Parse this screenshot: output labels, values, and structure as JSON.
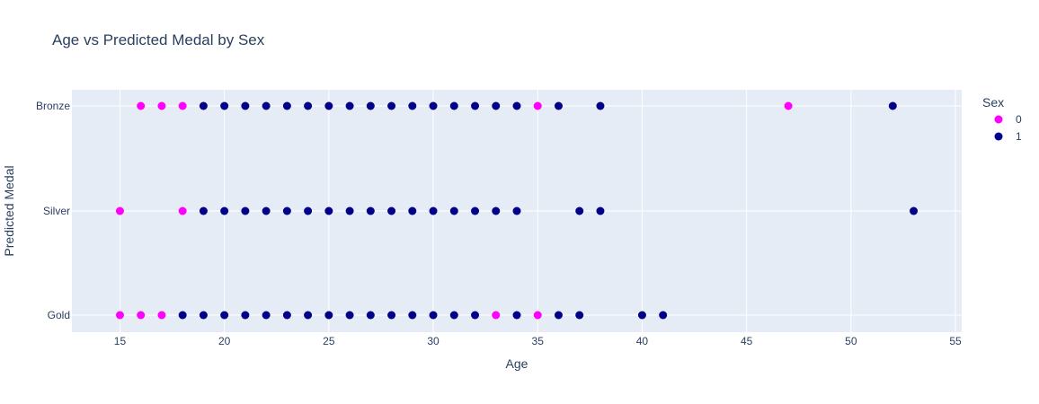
{
  "chart_data": {
    "type": "scatter",
    "title": "Age vs Predicted Medal by Sex",
    "xlabel": "Age",
    "ylabel": "Predicted Medal",
    "xlim": [
      12.7,
      55.3
    ],
    "x_ticks": [
      15,
      20,
      25,
      30,
      35,
      40,
      45,
      50,
      55
    ],
    "categories": [
      "Gold",
      "Silver",
      "Bronze"
    ],
    "grid": true,
    "legend": {
      "title": "Sex",
      "placement": "top-right"
    },
    "series": [
      {
        "name": "0",
        "color": "#ff00ff",
        "points": [
          {
            "x": 15,
            "y": "Silver"
          },
          {
            "x": 18,
            "y": "Silver"
          },
          {
            "x": 15,
            "y": "Gold"
          },
          {
            "x": 16,
            "y": "Gold"
          },
          {
            "x": 17,
            "y": "Gold"
          },
          {
            "x": 33,
            "y": "Gold"
          },
          {
            "x": 35,
            "y": "Gold"
          },
          {
            "x": 16,
            "y": "Bronze"
          },
          {
            "x": 17,
            "y": "Bronze"
          },
          {
            "x": 18,
            "y": "Bronze"
          },
          {
            "x": 35,
            "y": "Bronze"
          },
          {
            "x": 47,
            "y": "Bronze"
          }
        ]
      },
      {
        "name": "1",
        "color": "#00008b",
        "points": [
          {
            "x": 18,
            "y": "Gold"
          },
          {
            "x": 19,
            "y": "Gold"
          },
          {
            "x": 20,
            "y": "Gold"
          },
          {
            "x": 21,
            "y": "Gold"
          },
          {
            "x": 22,
            "y": "Gold"
          },
          {
            "x": 23,
            "y": "Gold"
          },
          {
            "x": 24,
            "y": "Gold"
          },
          {
            "x": 25,
            "y": "Gold"
          },
          {
            "x": 26,
            "y": "Gold"
          },
          {
            "x": 27,
            "y": "Gold"
          },
          {
            "x": 28,
            "y": "Gold"
          },
          {
            "x": 29,
            "y": "Gold"
          },
          {
            "x": 30,
            "y": "Gold"
          },
          {
            "x": 31,
            "y": "Gold"
          },
          {
            "x": 32,
            "y": "Gold"
          },
          {
            "x": 34,
            "y": "Gold"
          },
          {
            "x": 36,
            "y": "Gold"
          },
          {
            "x": 37,
            "y": "Gold"
          },
          {
            "x": 40,
            "y": "Gold"
          },
          {
            "x": 41,
            "y": "Gold"
          },
          {
            "x": 19,
            "y": "Silver"
          },
          {
            "x": 20,
            "y": "Silver"
          },
          {
            "x": 21,
            "y": "Silver"
          },
          {
            "x": 22,
            "y": "Silver"
          },
          {
            "x": 23,
            "y": "Silver"
          },
          {
            "x": 24,
            "y": "Silver"
          },
          {
            "x": 25,
            "y": "Silver"
          },
          {
            "x": 26,
            "y": "Silver"
          },
          {
            "x": 27,
            "y": "Silver"
          },
          {
            "x": 28,
            "y": "Silver"
          },
          {
            "x": 29,
            "y": "Silver"
          },
          {
            "x": 30,
            "y": "Silver"
          },
          {
            "x": 31,
            "y": "Silver"
          },
          {
            "x": 32,
            "y": "Silver"
          },
          {
            "x": 33,
            "y": "Silver"
          },
          {
            "x": 34,
            "y": "Silver"
          },
          {
            "x": 37,
            "y": "Silver"
          },
          {
            "x": 38,
            "y": "Silver"
          },
          {
            "x": 53,
            "y": "Silver"
          },
          {
            "x": 19,
            "y": "Bronze"
          },
          {
            "x": 20,
            "y": "Bronze"
          },
          {
            "x": 21,
            "y": "Bronze"
          },
          {
            "x": 22,
            "y": "Bronze"
          },
          {
            "x": 23,
            "y": "Bronze"
          },
          {
            "x": 24,
            "y": "Bronze"
          },
          {
            "x": 25,
            "y": "Bronze"
          },
          {
            "x": 26,
            "y": "Bronze"
          },
          {
            "x": 27,
            "y": "Bronze"
          },
          {
            "x": 28,
            "y": "Bronze"
          },
          {
            "x": 29,
            "y": "Bronze"
          },
          {
            "x": 30,
            "y": "Bronze"
          },
          {
            "x": 31,
            "y": "Bronze"
          },
          {
            "x": 32,
            "y": "Bronze"
          },
          {
            "x": 33,
            "y": "Bronze"
          },
          {
            "x": 34,
            "y": "Bronze"
          },
          {
            "x": 36,
            "y": "Bronze"
          },
          {
            "x": 38,
            "y": "Bronze"
          },
          {
            "x": 52,
            "y": "Bronze"
          }
        ]
      }
    ]
  },
  "colors": {
    "plot_background": "#e5ecf6",
    "grid": "#ffffff",
    "text": "#2a3f5f"
  }
}
